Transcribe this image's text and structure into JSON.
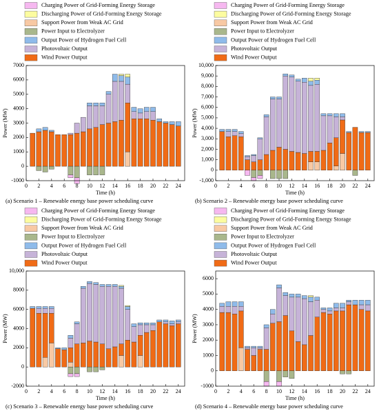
{
  "chart_data": [
    {
      "type": "bar",
      "stacked": true,
      "title": "(a) Scenario 1 – Renewable energy base power scheduling curve",
      "xlabel": "Time (h)",
      "ylabel": "Power (MW)",
      "x": [
        1,
        2,
        3,
        4,
        5,
        6,
        7,
        8,
        9,
        10,
        11,
        12,
        13,
        14,
        15,
        16,
        17,
        18,
        19,
        20,
        21,
        22,
        23,
        24
      ],
      "xlim": [
        0,
        25
      ],
      "xticks": [
        0,
        2,
        4,
        6,
        8,
        10,
        12,
        14,
        16,
        18,
        20,
        22,
        24
      ],
      "ylim": [
        -1000,
        7000
      ],
      "yticks": [
        -1000,
        0,
        1000,
        2000,
        3000,
        4000,
        5000,
        6000,
        7000
      ],
      "series": [
        {
          "name": "Charging Power of Grid-Forming Energy Storage",
          "color": "#f6b8f0",
          "values": [
            0,
            0,
            0,
            0,
            0,
            0,
            -200,
            -400,
            0,
            0,
            0,
            0,
            0,
            0,
            0,
            0,
            0,
            0,
            0,
            0,
            0,
            0,
            0,
            0
          ]
        },
        {
          "name": "Discharging Power of Grid-Forming Energy Storage",
          "color": "#fcfca0",
          "values": [
            0,
            0,
            0,
            0,
            0,
            0,
            0,
            0,
            0,
            0,
            0,
            0,
            0,
            0,
            100,
            200,
            0,
            0,
            0,
            0,
            0,
            0,
            0,
            0
          ]
        },
        {
          "name": "Support Power from Weak AC Grid",
          "color": "#f8c9a4",
          "values": [
            0,
            0,
            0,
            0,
            0,
            0,
            0,
            0,
            0,
            0,
            0,
            0,
            0,
            0,
            0,
            1000,
            0,
            0,
            0,
            0,
            0,
            0,
            0,
            0
          ]
        },
        {
          "name": "Power Input to Electrolyzer",
          "color": "#a9b78c",
          "values": [
            0,
            -300,
            -400,
            -200,
            0,
            0,
            -600,
            -800,
            0,
            -600,
            -600,
            -600,
            0,
            0,
            0,
            0,
            0,
            0,
            0,
            0,
            0,
            0,
            0,
            0
          ]
        },
        {
          "name": "Output Power of Hydrogen Fuel Cell",
          "color": "#8fbbea",
          "values": [
            0,
            200,
            200,
            100,
            0,
            0,
            0,
            0,
            0,
            200,
            200,
            200,
            200,
            500,
            400,
            500,
            300,
            300,
            300,
            300,
            200,
            100,
            200,
            300
          ]
        },
        {
          "name": "Photovoltaic Output",
          "color": "#c6b3d8",
          "values": [
            0,
            0,
            0,
            0,
            0,
            0,
            100,
            700,
            1000,
            1600,
            1500,
            1300,
            2000,
            2800,
            2700,
            1300,
            500,
            400,
            500,
            600,
            0,
            0,
            0,
            0
          ]
        },
        {
          "name": "Wind Power Output",
          "color": "#f06b16",
          "values": [
            2300,
            2400,
            2500,
            2400,
            2200,
            2200,
            2200,
            2300,
            2400,
            2600,
            2700,
            2900,
            3000,
            3100,
            3200,
            3400,
            3300,
            3300,
            3300,
            3200,
            3100,
            3000,
            2900,
            2800
          ]
        }
      ]
    },
    {
      "type": "bar",
      "stacked": true,
      "title": "(b) Scenario 2 – Renewable energy base power scheduling curve",
      "xlabel": "Time (h)",
      "ylabel": "Power (MW)",
      "x": [
        1,
        2,
        3,
        4,
        5,
        6,
        7,
        8,
        9,
        10,
        11,
        12,
        13,
        14,
        15,
        16,
        17,
        18,
        19,
        20,
        21,
        22,
        23,
        24
      ],
      "xlim": [
        0,
        25
      ],
      "xticks": [
        0,
        2,
        4,
        6,
        8,
        10,
        12,
        14,
        16,
        18,
        20,
        22,
        24
      ],
      "ylim": [
        -1000,
        10000
      ],
      "yticks": [
        {
          "value": -1000,
          "label": "-1,000"
        },
        0,
        {
          "value": 1000,
          "label": "1,000"
        },
        {
          "value": 2000,
          "label": "2,000"
        },
        {
          "value": 3000,
          "label": "3,000"
        },
        {
          "value": 4000,
          "label": "4,000"
        },
        {
          "value": 5000,
          "label": "5,000"
        },
        {
          "value": 6000,
          "label": "6,000"
        },
        {
          "value": 7000,
          "label": "7,000"
        },
        {
          "value": 8000,
          "label": "8,000"
        },
        {
          "value": 9000,
          "label": "9,000"
        },
        {
          "value": 10000,
          "label": "10,000"
        }
      ],
      "series": [
        {
          "name": "Charging Power of Grid-Forming Energy Storage",
          "color": "#f6b8f0",
          "values": [
            0,
            0,
            0,
            0,
            -500,
            -300,
            -300,
            0,
            0,
            0,
            0,
            0,
            0,
            0,
            0,
            0,
            0,
            0,
            0,
            0,
            0,
            0,
            0,
            0
          ]
        },
        {
          "name": "Discharging Power of Grid-Forming Energy Storage",
          "color": "#fcfca0",
          "values": [
            0,
            0,
            0,
            0,
            0,
            0,
            0,
            0,
            0,
            0,
            0,
            0,
            0,
            0,
            300,
            200,
            0,
            0,
            0,
            0,
            0,
            0,
            0,
            0
          ]
        },
        {
          "name": "Support Power from Weak AC Grid",
          "color": "#f8c9a4",
          "values": [
            0,
            0,
            0,
            0,
            0,
            0,
            0,
            0,
            0,
            0,
            0,
            0,
            0,
            0,
            800,
            800,
            0,
            0,
            400,
            1600,
            0,
            0,
            0,
            0
          ]
        },
        {
          "name": "Power Input to Electrolyzer",
          "color": "#a9b78c",
          "values": [
            0,
            0,
            0,
            0,
            0,
            -700,
            -500,
            0,
            -800,
            -800,
            -800,
            0,
            0,
            0,
            0,
            0,
            0,
            0,
            0,
            0,
            0,
            -500,
            0,
            0
          ]
        },
        {
          "name": "Output Power of Hydrogen Fuel Cell",
          "color": "#8fbbea",
          "values": [
            200,
            200,
            200,
            200,
            100,
            100,
            100,
            200,
            200,
            200,
            200,
            200,
            200,
            400,
            400,
            400,
            200,
            200,
            300,
            300,
            100,
            0,
            100,
            100
          ]
        },
        {
          "name": "Photovoltaic Output",
          "color": "#c6b3d8",
          "values": [
            0,
            500,
            400,
            300,
            300,
            600,
            2000,
            3600,
            4900,
            4600,
            7000,
            7100,
            6800,
            6800,
            6300,
            6400,
            3300,
            2600,
            2000,
            300,
            0,
            0,
            0,
            0
          ]
        },
        {
          "name": "Wind Power Output",
          "color": "#f06b16",
          "values": [
            3700,
            3200,
            3300,
            3200,
            1000,
            800,
            1000,
            1500,
            1900,
            2200,
            2000,
            1800,
            1700,
            1600,
            1000,
            1000,
            1900,
            2600,
            2700,
            3200,
            3600,
            4100,
            3600,
            3600
          ]
        }
      ]
    },
    {
      "type": "bar",
      "stacked": true,
      "title": "(c) Scenario 3 – Renewable energy base power scheduling curve",
      "xlabel": "Time (h)",
      "ylabel": "Power (MW)",
      "x": [
        1,
        2,
        3,
        4,
        5,
        6,
        7,
        8,
        9,
        10,
        11,
        12,
        13,
        14,
        15,
        16,
        17,
        18,
        19,
        20,
        21,
        22,
        23,
        24
      ],
      "xlim": [
        0,
        25
      ],
      "xticks": [
        0,
        2,
        4,
        6,
        8,
        10,
        12,
        14,
        16,
        18,
        20,
        22,
        24
      ],
      "ylim": [
        -2000,
        10000
      ],
      "yticks": [
        -2000,
        0,
        2000,
        4000,
        6000,
        8000,
        {
          "value": 10000,
          "label": "10,000"
        }
      ],
      "series": [
        {
          "name": "Charging Power of Grid-Forming Energy Storage",
          "color": "#f6b8f0",
          "values": [
            0,
            0,
            0,
            0,
            0,
            0,
            -300,
            -300,
            0,
            0,
            0,
            0,
            0,
            0,
            0,
            0,
            0,
            0,
            0,
            0,
            0,
            0,
            0,
            0
          ]
        },
        {
          "name": "Discharging Power of Grid-Forming Energy Storage",
          "color": "#fcfca0",
          "values": [
            0,
            0,
            0,
            0,
            0,
            0,
            0,
            0,
            0,
            0,
            0,
            0,
            0,
            0,
            100,
            100,
            0,
            0,
            0,
            0,
            0,
            0,
            0,
            0
          ]
        },
        {
          "name": "Support Power from Weak AC Grid",
          "color": "#f8c9a4",
          "values": [
            0,
            0,
            1000,
            2500,
            0,
            0,
            500,
            0,
            0,
            0,
            0,
            0,
            0,
            0,
            1200,
            0,
            0,
            1200,
            0,
            0,
            0,
            0,
            0,
            0
          ]
        },
        {
          "name": "Power Input to Electrolyzer",
          "color": "#a9b78c",
          "values": [
            0,
            0,
            0,
            0,
            0,
            0,
            -700,
            -700,
            0,
            -500,
            -500,
            -300,
            0,
            0,
            0,
            0,
            0,
            0,
            0,
            0,
            0,
            0,
            0,
            0
          ]
        },
        {
          "name": "Output Power of Hydrogen Fuel Cell",
          "color": "#8fbbea",
          "values": [
            200,
            200,
            200,
            200,
            100,
            200,
            300,
            200,
            200,
            200,
            200,
            200,
            200,
            200,
            200,
            300,
            300,
            200,
            200,
            200,
            200,
            200,
            300,
            200
          ]
        },
        {
          "name": "Photovoltaic Output",
          "color": "#c6b3d8",
          "values": [
            0,
            500,
            500,
            500,
            0,
            0,
            1000,
            2100,
            5700,
            6000,
            6000,
            6000,
            6500,
            6300,
            5800,
            3200,
            1600,
            1100,
            800,
            600,
            0,
            200,
            200,
            200
          ]
        },
        {
          "name": "Wind Power Output",
          "color": "#f06b16",
          "values": [
            6100,
            5600,
            4600,
            3100,
            1900,
            1800,
            1500,
            2400,
            2500,
            2700,
            2600,
            2400,
            1900,
            2100,
            1200,
            2800,
            2600,
            2100,
            3600,
            3800,
            4700,
            4500,
            4300,
            4500
          ]
        }
      ]
    },
    {
      "type": "bar",
      "stacked": true,
      "title": "(d) Scenario 4 – Renewable energy base power scheduling curve",
      "xlabel": "Time (h)",
      "ylabel": "Power (MW)",
      "x": [
        1,
        2,
        3,
        4,
        5,
        6,
        7,
        8,
        9,
        10,
        11,
        12,
        13,
        14,
        15,
        16,
        17,
        18,
        19,
        20,
        21,
        22,
        23,
        24
      ],
      "xlim": [
        0,
        25
      ],
      "xticks": [
        0,
        2,
        4,
        6,
        8,
        10,
        12,
        14,
        16,
        18,
        20,
        22,
        24
      ],
      "ylim": [
        -1000,
        6500
      ],
      "yticks": [
        -1000,
        0,
        1000,
        2000,
        3000,
        4000,
        5000,
        6000
      ],
      "series": [
        {
          "name": "Charging Power of Grid-Forming Energy Storage",
          "color": "#f6b8f0",
          "values": [
            0,
            0,
            0,
            0,
            0,
            0,
            0,
            -300,
            0,
            -300,
            0,
            0,
            0,
            0,
            0,
            0,
            0,
            0,
            0,
            0,
            0,
            0,
            0,
            0
          ]
        },
        {
          "name": "Discharging Power of Grid-Forming Energy Storage",
          "color": "#fcfca0",
          "values": [
            0,
            0,
            0,
            0,
            0,
            0,
            0,
            0,
            0,
            0,
            0,
            0,
            0,
            0,
            100,
            0,
            0,
            0,
            0,
            0,
            0,
            0,
            0,
            0
          ]
        },
        {
          "name": "Support Power from Weak AC Grid",
          "color": "#f8c9a4",
          "values": [
            0,
            0,
            0,
            1500,
            0,
            0,
            0,
            0,
            0,
            0,
            0,
            0,
            0,
            0,
            0,
            0,
            0,
            0,
            0,
            0,
            0,
            0,
            0,
            0
          ]
        },
        {
          "name": "Power Input to Electrolyzer",
          "color": "#a9b78c",
          "values": [
            0,
            0,
            0,
            0,
            0,
            0,
            0,
            -700,
            0,
            -700,
            -400,
            -500,
            0,
            0,
            0,
            0,
            0,
            0,
            0,
            -200,
            -200,
            0,
            0,
            0
          ]
        },
        {
          "name": "Output Power of Hydrogen Fuel Cell",
          "color": "#8fbbea",
          "values": [
            200,
            300,
            300,
            300,
            100,
            100,
            100,
            200,
            300,
            200,
            200,
            200,
            200,
            200,
            300,
            200,
            100,
            200,
            300,
            300,
            100,
            300,
            300,
            300
          ]
        },
        {
          "name": "Photovoltaic Output",
          "color": "#c6b3d8",
          "values": [
            400,
            400,
            500,
            300,
            100,
            500,
            100,
            1400,
            600,
            2200,
            1300,
            2200,
            2900,
            3000,
            2200,
            1100,
            200,
            200,
            200,
            200,
            200,
            0,
            300,
            400
          ]
        },
        {
          "name": "Wind Power Output",
          "color": "#f06b16",
          "values": [
            3800,
            3800,
            3700,
            2400,
            1400,
            1000,
            1400,
            1400,
            3100,
            3200,
            3600,
            2600,
            1900,
            1700,
            2300,
            3500,
            3800,
            3700,
            3900,
            3900,
            4300,
            4300,
            4000,
            3900
          ]
        }
      ]
    }
  ]
}
